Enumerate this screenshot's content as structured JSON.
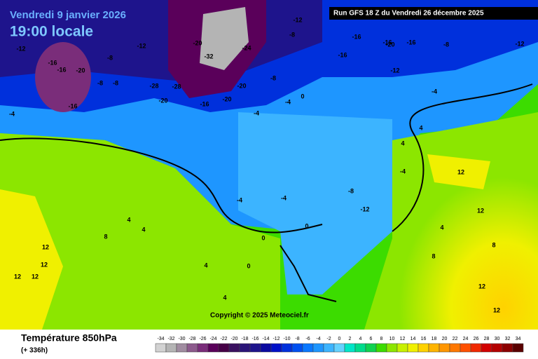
{
  "header": {
    "date": "Vendredi 9 janvier 2026",
    "time": "19:00 locale",
    "run": "Run GFS 18 Z du Vendredi 26 décembre 2025"
  },
  "copyright": "Copyright © 2025 Meteociel.fr",
  "footer": {
    "title": "Température 850hPa",
    "lead": "(+ 336h)"
  },
  "legend": {
    "values": [
      -34,
      -32,
      -30,
      -28,
      -26,
      -24,
      -22,
      -20,
      -18,
      -16,
      -14,
      -12,
      -10,
      -8,
      -6,
      -4,
      -2,
      0,
      2,
      4,
      6,
      8,
      10,
      12,
      14,
      16,
      18,
      20,
      22,
      24,
      26,
      28,
      30,
      32,
      34
    ],
    "colors": [
      "#d2d2d2",
      "#b4b4b4",
      "#a08ca0",
      "#8c5a8c",
      "#7a2d7a",
      "#5a005a",
      "#460046",
      "#3a1060",
      "#2a1478",
      "#1e148c",
      "#0a0aa0",
      "#0010c8",
      "#0030dc",
      "#0050f0",
      "#0a78ff",
      "#1e96ff",
      "#3cb4ff",
      "#64d2ff",
      "#00e6c8",
      "#00dc8c",
      "#10d250",
      "#3cdc00",
      "#8ce600",
      "#c8f000",
      "#f0f000",
      "#ffd200",
      "#ffb400",
      "#ff9600",
      "#ff7800",
      "#ff5000",
      "#f02800",
      "#d20000",
      "#b40000",
      "#8c0000",
      "#5a0000"
    ]
  },
  "map_labels": [
    -16,
    -16,
    -20,
    -16,
    -12,
    -8,
    -8,
    -8,
    -12,
    -12,
    -28,
    -20,
    -20,
    -32,
    -16,
    -20,
    -28,
    -24,
    -20,
    -16,
    -8,
    -8,
    -16,
    -16,
    -20,
    -16,
    -12,
    -8,
    -12,
    -4,
    -4,
    -4,
    -4,
    -4,
    -8,
    -12,
    0,
    0,
    0,
    4,
    4,
    4,
    4,
    8,
    8,
    12,
    12,
    12,
    12,
    12,
    12,
    12,
    4,
    4,
    8,
    12,
    -4,
    -4,
    0,
    4
  ]
}
